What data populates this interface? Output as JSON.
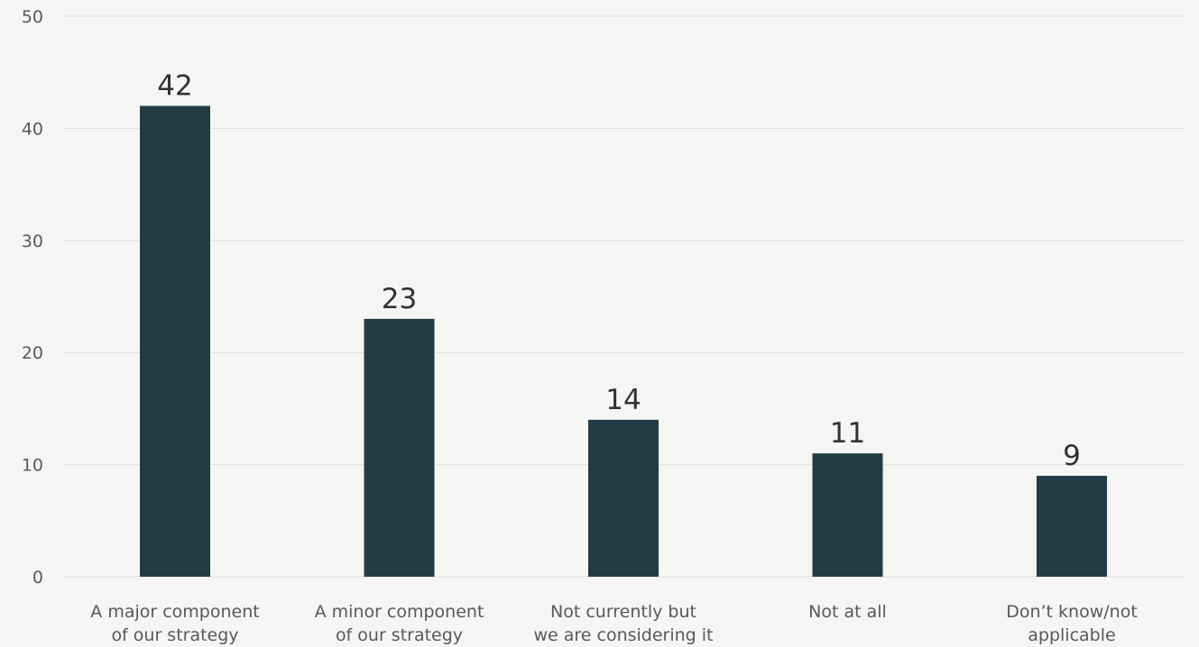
{
  "chart_data": {
    "type": "bar",
    "title": "",
    "xlabel": "",
    "ylabel": "",
    "categories": [
      [
        "A major component",
        "of our strategy"
      ],
      [
        "A minor component",
        "of our strategy"
      ],
      [
        "Not currently but",
        "we are considering it"
      ],
      [
        "Not at all"
      ],
      [
        "Don’t know/not",
        "applicable"
      ]
    ],
    "values": [
      42,
      23,
      14,
      11,
      9
    ],
    "ylim": [
      0,
      50
    ],
    "yticks": [
      0,
      10,
      20,
      30,
      40,
      50
    ],
    "grid": true,
    "legend": "none",
    "colors": {
      "bar": "#213c44",
      "background": "#f5f5f3",
      "grid": "#dcdcd8"
    }
  }
}
